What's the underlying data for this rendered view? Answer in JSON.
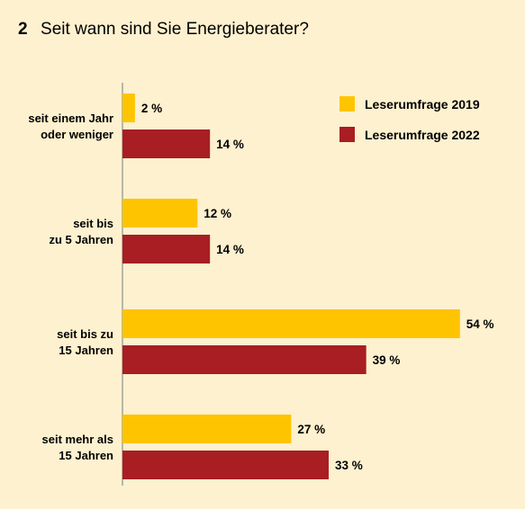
{
  "figure_number": "2",
  "chart_data": {
    "type": "bar",
    "orientation": "horizontal",
    "title": "Seit wann sind Sie Energieberater?",
    "categories": [
      [
        "seit einem Jahr",
        "oder weniger"
      ],
      [
        "seit bis",
        "zu 5 Jahren"
      ],
      [
        "seit bis zu",
        "15 Jahren"
      ],
      [
        "seit mehr als",
        "15 Jahren"
      ]
    ],
    "series": [
      {
        "name": "Leserumfrage 2019",
        "color": "#ffc400",
        "values": [
          2,
          12,
          54,
          27
        ]
      },
      {
        "name": "Leserumfrage 2022",
        "color": "#a81e22",
        "values": [
          14,
          14,
          39,
          33
        ]
      }
    ],
    "value_suffix": " %",
    "xlim": [
      0,
      54
    ],
    "grid": false,
    "legend_position": "top-right"
  }
}
